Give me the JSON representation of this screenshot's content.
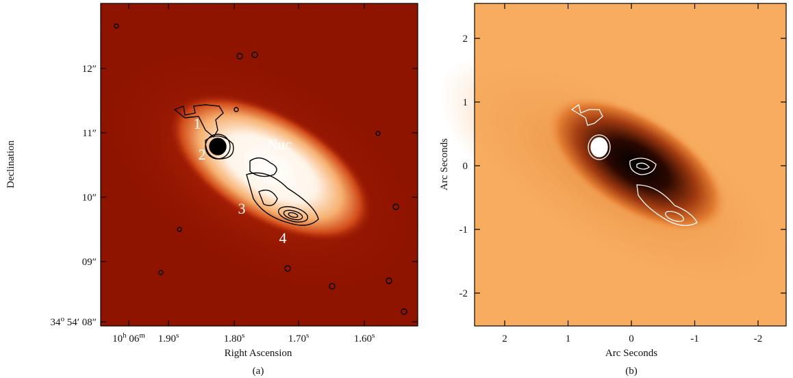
{
  "panels": [
    {
      "x_label": "Right Ascension",
      "y_label": "Declination",
      "caption": "(a)",
      "x_ticks": [
        [
          "10",
          "h",
          " 06",
          "m"
        ],
        [
          "1.90",
          "s"
        ],
        [
          "1.80",
          "s"
        ],
        [
          "1.70",
          "s"
        ],
        [
          "1.60",
          "s"
        ]
      ],
      "y_ticks": [
        [
          "12″"
        ],
        [
          "11″"
        ],
        [
          "10″"
        ],
        [
          "09″"
        ],
        [
          "34",
          "o",
          " 54′ 08″"
        ]
      ],
      "annotations": [
        "1",
        "2",
        "3",
        "4",
        "Nuc"
      ]
    },
    {
      "x_label": "Arc Seconds",
      "y_label": "Arc Seconds",
      "caption": "(b)",
      "x_ticks": [
        2,
        1,
        0,
        -1,
        -2
      ],
      "y_ticks": [
        2,
        1,
        0,
        -1,
        -2
      ]
    }
  ]
}
